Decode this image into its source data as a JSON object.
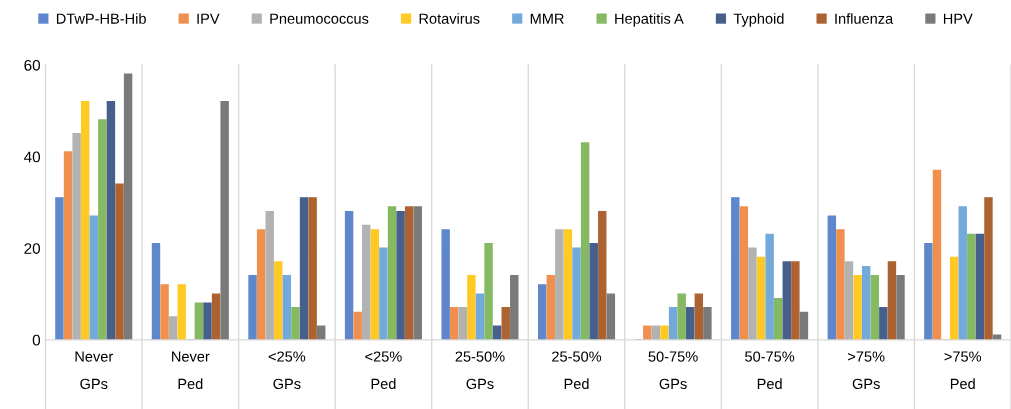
{
  "chart_data": {
    "type": "bar",
    "categories": [
      "Never\nGPs",
      "Never\nPed",
      "<25%\nGPs",
      "<25%\nPed",
      "25-50%\nGPs",
      "25-50%\nPed",
      "50-75%\nGPs",
      "50-75%\nPed",
      ">75%\nGPs",
      ">75%\nPed"
    ],
    "series": [
      {
        "name": "DTwP-HB-Hib",
        "color": "#4472c4",
        "values": [
          31,
          21,
          14,
          28,
          24,
          12,
          0,
          31,
          27,
          21
        ]
      },
      {
        "name": "IPV",
        "color": "#ed7d31",
        "values": [
          41,
          12,
          24,
          6,
          7,
          14,
          3,
          29,
          24,
          37
        ]
      },
      {
        "name": "Pneumococcus",
        "color": "#a5a5a5",
        "values": [
          45,
          5,
          28,
          25,
          7,
          24,
          3,
          20,
          17,
          0
        ]
      },
      {
        "name": "Rotavirus",
        "color": "#ffc000",
        "values": [
          52,
          12,
          17,
          24,
          14,
          24,
          3,
          18,
          14,
          18
        ]
      },
      {
        "name": "MMR",
        "color": "#5b9bd5",
        "values": [
          27,
          0,
          14,
          20,
          10,
          20,
          7,
          23,
          16,
          29
        ]
      },
      {
        "name": "Hepatitis A",
        "color": "#70ad47",
        "values": [
          48,
          8,
          7,
          29,
          21,
          43,
          10,
          9,
          14,
          23
        ]
      },
      {
        "name": "Typhoid",
        "color": "#264478",
        "values": [
          52,
          8,
          31,
          28,
          3,
          21,
          7,
          17,
          7,
          23
        ]
      },
      {
        "name": "Influenza",
        "color": "#9e480e",
        "values": [
          34,
          10,
          31,
          29,
          7,
          28,
          10,
          17,
          17,
          31
        ]
      },
      {
        "name": "HPV",
        "color": "#636363",
        "values": [
          58,
          52,
          3,
          29,
          14,
          10,
          7,
          6,
          14,
          1
        ]
      }
    ],
    "ylim": [
      0,
      60
    ],
    "yticks": [
      0,
      20,
      40,
      60
    ],
    "grid": "x",
    "legend": "top"
  }
}
